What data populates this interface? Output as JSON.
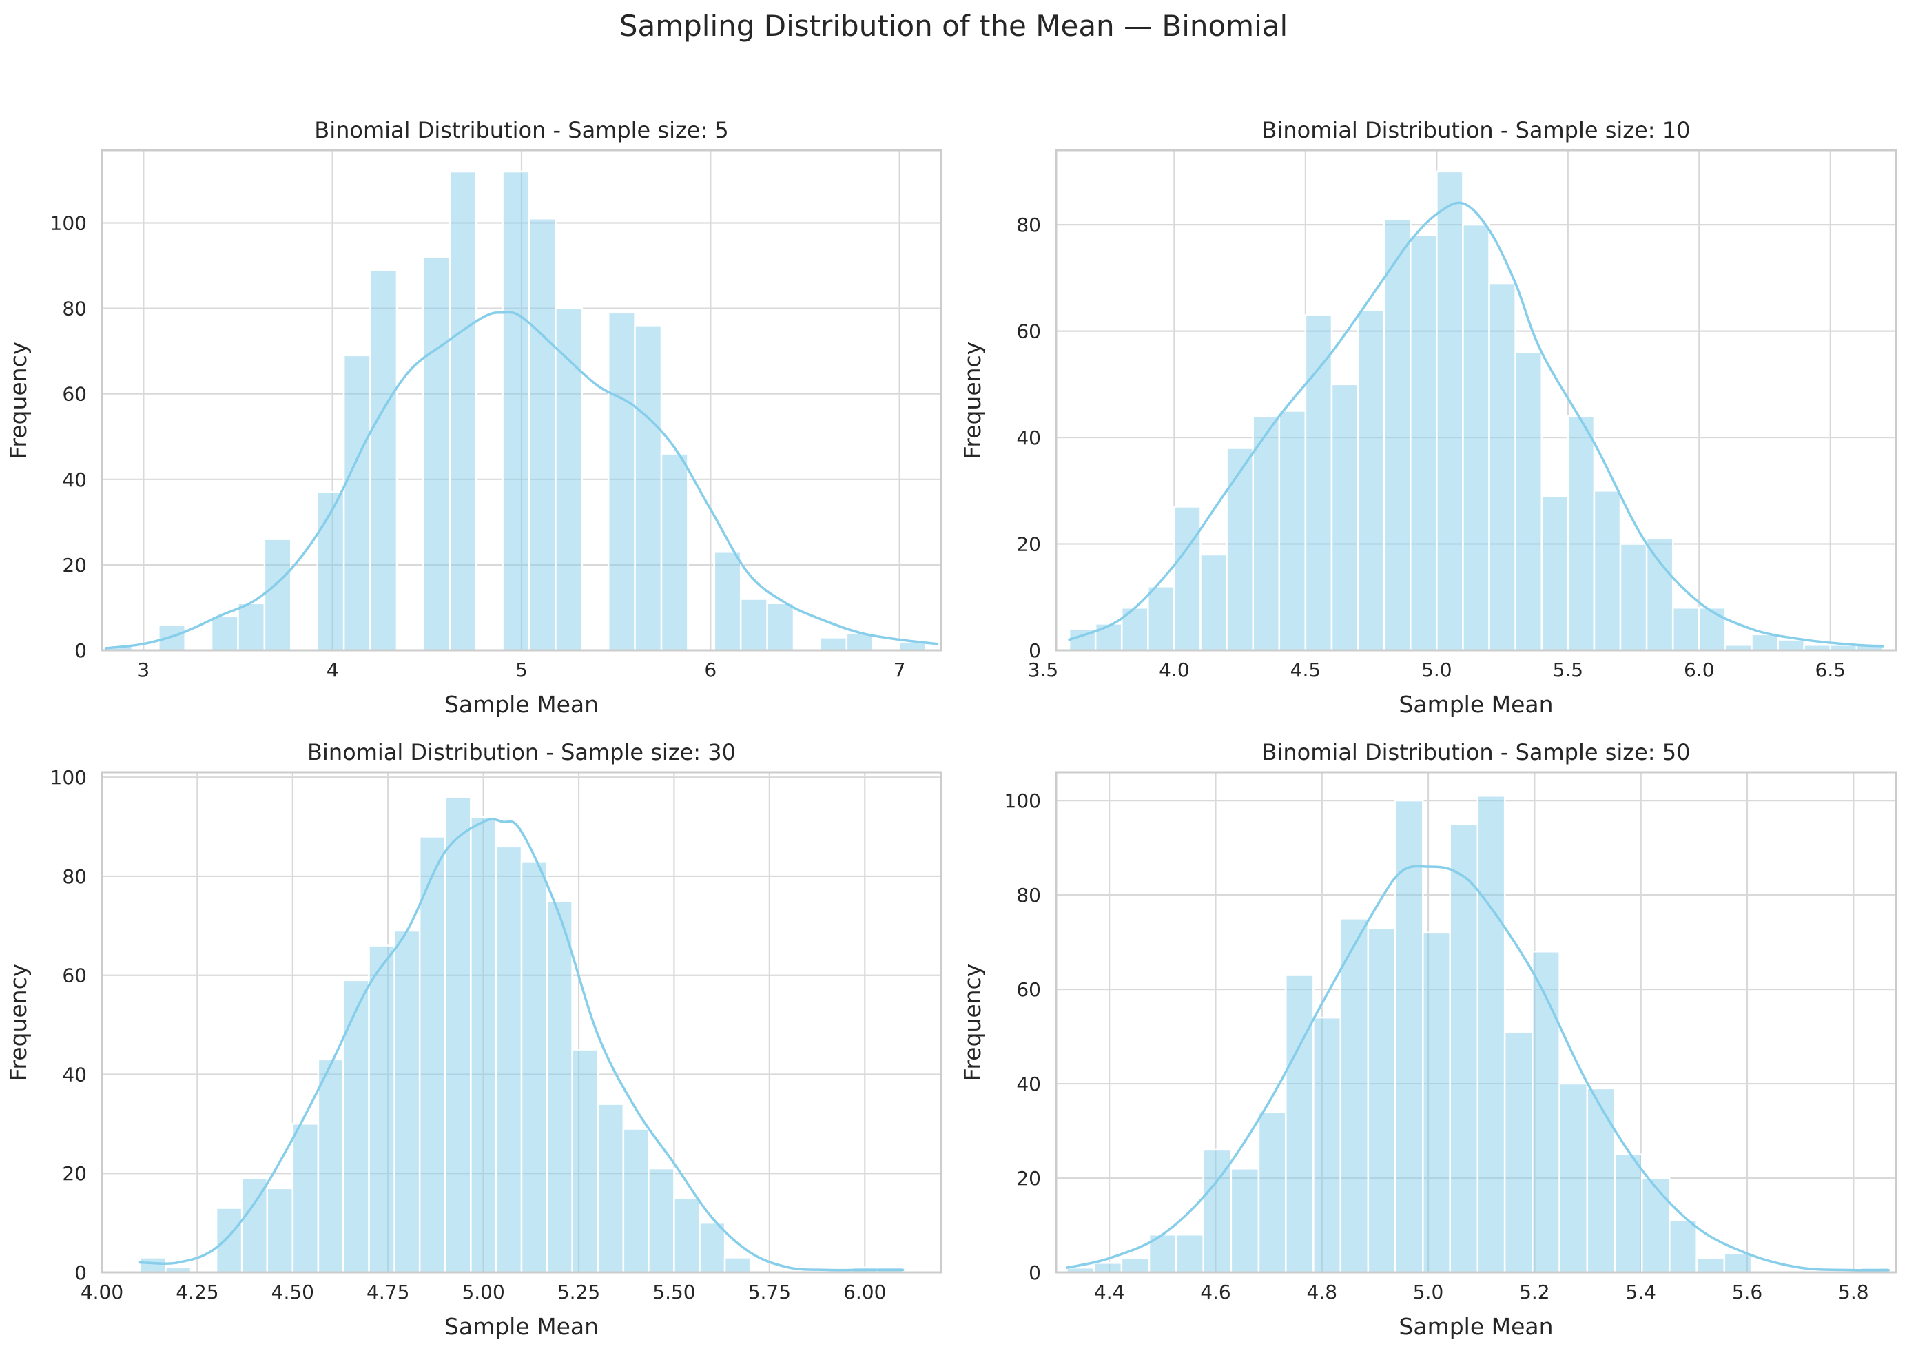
{
  "figure": {
    "suptitle": "Sampling Distribution of the Mean — Binomial"
  },
  "colors": {
    "bar_fill": "#87ceeb",
    "bar_opacity": 0.5,
    "kde_line": "#87ceeb",
    "grid": "#d9d9d9",
    "frame": "#cccccc",
    "text": "#262626"
  },
  "chart_data": [
    {
      "type": "bar",
      "title": "Binomial Distribution - Sample size: 5",
      "xlabel": "Sample Mean",
      "ylabel": "Frequency",
      "xlim": [
        2.78,
        7.22
      ],
      "ylim": [
        0,
        117
      ],
      "xticks": [
        3,
        4,
        5,
        6,
        7
      ],
      "xtick_labels": [
        "3",
        "4",
        "5",
        "6",
        "7"
      ],
      "yticks": [
        0,
        20,
        40,
        60,
        80,
        100
      ],
      "ytick_labels": [
        "0",
        "20",
        "40",
        "60",
        "80",
        "100"
      ],
      "grid": true,
      "bin_edges": [
        2.8,
        2.94,
        3.08,
        3.22,
        3.36,
        3.5,
        3.64,
        3.78,
        3.92,
        4.06,
        4.2,
        4.34,
        4.48,
        4.62,
        4.76,
        4.9,
        5.04,
        5.18,
        5.32,
        5.46,
        5.6,
        5.74,
        5.88,
        6.02,
        6.16,
        6.3,
        6.44,
        6.58,
        6.72,
        6.86,
        7.0,
        7.14
      ],
      "counts": [
        1,
        0,
        6,
        0,
        8,
        11,
        26,
        0,
        37,
        69,
        89,
        0,
        92,
        112,
        0,
        112,
        101,
        80,
        0,
        79,
        76,
        46,
        0,
        23,
        12,
        11,
        0,
        3,
        4,
        0,
        2
      ],
      "kde": {
        "x": [
          2.8,
          3.0,
          3.2,
          3.4,
          3.6,
          3.8,
          4.0,
          4.2,
          4.4,
          4.6,
          4.8,
          4.9,
          5.0,
          5.2,
          5.4,
          5.6,
          5.8,
          6.0,
          6.2,
          6.4,
          6.6,
          6.8,
          7.0,
          7.2
        ],
        "y": [
          0.5,
          1.5,
          4,
          8,
          12,
          20,
          33,
          51,
          65,
          72,
          78,
          79,
          78,
          70,
          62,
          57,
          48,
          33,
          18,
          11,
          7,
          4,
          2.5,
          1.5
        ]
      }
    },
    {
      "type": "bar",
      "title": "Binomial Distribution - Sample size: 10",
      "xlabel": "Sample Mean",
      "ylabel": "Frequency",
      "xlim": [
        3.55,
        6.75
      ],
      "ylim": [
        0,
        94
      ],
      "xticks": [
        3.5,
        4.0,
        4.5,
        5.0,
        5.5,
        6.0,
        6.5
      ],
      "xtick_labels": [
        "3.5",
        "4.0",
        "4.5",
        "5.0",
        "5.5",
        "6.0",
        "6.5"
      ],
      "yticks": [
        0,
        20,
        40,
        60,
        80
      ],
      "ytick_labels": [
        "0",
        "20",
        "40",
        "60",
        "80"
      ],
      "grid": true,
      "bin_edges": [
        3.6,
        3.7,
        3.8,
        3.9,
        4.0,
        4.1,
        4.2,
        4.3,
        4.4,
        4.5,
        4.6,
        4.7,
        4.8,
        4.9,
        5.0,
        5.1,
        5.2,
        5.3,
        5.4,
        5.5,
        5.6,
        5.7,
        5.8,
        5.9,
        6.0,
        6.1,
        6.2,
        6.3,
        6.4,
        6.5,
        6.6,
        6.7
      ],
      "counts": [
        4,
        5,
        8,
        12,
        27,
        18,
        38,
        44,
        45,
        63,
        50,
        64,
        81,
        78,
        90,
        80,
        69,
        56,
        29,
        44,
        30,
        20,
        21,
        8,
        8,
        1,
        3,
        2,
        1,
        1,
        1
      ],
      "kde": {
        "x": [
          3.6,
          3.8,
          4.0,
          4.2,
          4.4,
          4.6,
          4.8,
          4.9,
          5.0,
          5.1,
          5.2,
          5.3,
          5.4,
          5.6,
          5.8,
          6.0,
          6.2,
          6.4,
          6.6,
          6.7
        ],
        "y": [
          2,
          6,
          16,
          30,
          44,
          56,
          70,
          77,
          82,
          84,
          79,
          69,
          56,
          39,
          20,
          9,
          4,
          2,
          1,
          0.8
        ]
      }
    },
    {
      "type": "bar",
      "title": "Binomial Distribution - Sample size: 30",
      "xlabel": "Sample Mean",
      "ylabel": "Frequency",
      "xlim": [
        4.0,
        6.2
      ],
      "ylim": [
        0,
        101
      ],
      "xticks": [
        4.0,
        4.25,
        4.5,
        4.75,
        5.0,
        5.25,
        5.5,
        5.75,
        6.0
      ],
      "xtick_labels": [
        "4.00",
        "4.25",
        "4.50",
        "4.75",
        "5.00",
        "5.25",
        "5.50",
        "5.75",
        "6.00"
      ],
      "yticks": [
        0,
        20,
        40,
        60,
        80,
        100
      ],
      "ytick_labels": [
        "0",
        "20",
        "40",
        "60",
        "80",
        "100"
      ],
      "grid": true,
      "bin_edges": [
        4.1,
        4.167,
        4.233,
        4.3,
        4.367,
        4.433,
        4.5,
        4.567,
        4.633,
        4.7,
        4.767,
        4.833,
        4.9,
        4.967,
        5.033,
        5.1,
        5.167,
        5.233,
        5.3,
        5.367,
        5.433,
        5.5,
        5.567,
        5.633,
        5.7,
        5.767,
        5.833,
        5.9,
        5.967,
        6.033,
        6.1
      ],
      "counts": [
        3,
        1,
        0,
        13,
        19,
        17,
        30,
        43,
        59,
        66,
        69,
        88,
        96,
        92,
        86,
        83,
        75,
        45,
        34,
        29,
        21,
        15,
        10,
        3,
        0,
        0,
        0,
        0,
        1,
        1
      ],
      "kde": {
        "x": [
          4.1,
          4.2,
          4.3,
          4.4,
          4.5,
          4.6,
          4.7,
          4.8,
          4.9,
          5.0,
          5.05,
          5.1,
          5.2,
          5.3,
          5.4,
          5.5,
          5.6,
          5.7,
          5.8,
          5.9,
          6.0,
          6.1
        ],
        "y": [
          2,
          2,
          5,
          14,
          27,
          42,
          58,
          69,
          85,
          91,
          91,
          89,
          72,
          48,
          33,
          22,
          11,
          4,
          1,
          0.5,
          0.5,
          0.5
        ]
      }
    },
    {
      "type": "bar",
      "title": "Binomial Distribution - Sample size: 50",
      "xlabel": "Sample Mean",
      "ylabel": "Frequency",
      "xlim": [
        4.3,
        5.88
      ],
      "ylim": [
        0,
        106
      ],
      "xticks": [
        4.4,
        4.6,
        4.8,
        5.0,
        5.2,
        5.4,
        5.6,
        5.8
      ],
      "xtick_labels": [
        "4.4",
        "4.6",
        "4.8",
        "5.0",
        "5.2",
        "5.4",
        "5.6",
        "5.8"
      ],
      "yticks": [
        0,
        20,
        40,
        60,
        80,
        100
      ],
      "ytick_labels": [
        "0",
        "20",
        "40",
        "60",
        "80",
        "100"
      ],
      "grid": true,
      "bin_edges": [
        4.32,
        4.371,
        4.423,
        4.475,
        4.526,
        4.577,
        4.629,
        4.681,
        4.732,
        4.784,
        4.835,
        4.887,
        4.938,
        4.99,
        5.041,
        5.093,
        5.144,
        5.196,
        5.247,
        5.299,
        5.351,
        5.402,
        5.454,
        5.505,
        5.557,
        5.608,
        5.66,
        5.711,
        5.763,
        5.814,
        5.866
      ],
      "counts": [
        1,
        2,
        3,
        8,
        8,
        26,
        22,
        34,
        63,
        54,
        75,
        73,
        100,
        72,
        95,
        101,
        51,
        68,
        40,
        39,
        25,
        20,
        11,
        3,
        4,
        0,
        0,
        0,
        0,
        1
      ],
      "kde": {
        "x": [
          4.32,
          4.4,
          4.5,
          4.6,
          4.7,
          4.8,
          4.9,
          4.95,
          5.0,
          5.05,
          5.1,
          5.2,
          5.3,
          5.4,
          5.5,
          5.6,
          5.7,
          5.8,
          5.866
        ],
        "y": [
          1,
          3,
          8,
          19,
          36,
          57,
          77,
          85,
          86,
          85,
          80,
          63,
          40,
          22,
          10,
          4,
          1,
          0.5,
          0.5
        ]
      }
    }
  ]
}
